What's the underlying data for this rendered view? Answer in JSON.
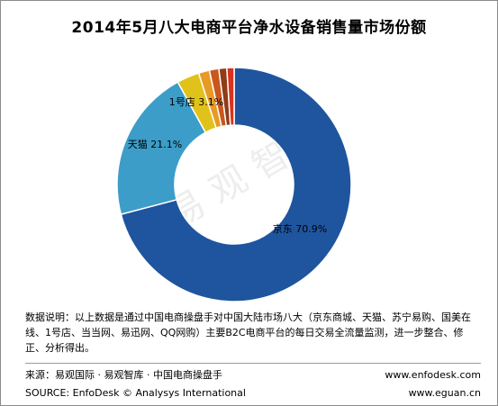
{
  "header": {
    "title": "2014年5月八大电商平台净水设备销售量市场份额"
  },
  "chart_data": {
    "type": "pie",
    "donut": true,
    "title": "2014年5月八大电商平台净水设备销售量市场份额",
    "slices": [
      {
        "label": "京东 70.9%",
        "value": 70.9,
        "color": "#1f559e"
      },
      {
        "label": "天猫 21.1%",
        "value": 21.1,
        "color": "#3c9dc8"
      },
      {
        "label": "1号店 3.1%",
        "value": 3.1,
        "color": "#e1c21a"
      },
      {
        "label": "",
        "value": 1.5,
        "color": "#e89a25"
      },
      {
        "label": "",
        "value": 1.3,
        "color": "#c9571d"
      },
      {
        "label": "",
        "value": 1.1,
        "color": "#8f3c18"
      },
      {
        "label": "",
        "value": 1.0,
        "color": "#d9321f"
      }
    ]
  },
  "watermark": {
    "text": "易观智库"
  },
  "notes": {
    "text": "数据说明：以上数据是通过中国电商操盘手对中国大陆市场八大（京东商城、天猫、苏宁易购、国美在线、1号店、当当网、易迅网、QQ网购）主要B2C电商平台的每日交易全流量监测，进一步整合、修正、分析得出。"
  },
  "footer": {
    "source_cn": "来源：易观国际 · 易观智库 · 中国电商操盘手",
    "site1": "www.enfodesk.com",
    "source_en": "SOURCE: EnfoDesk © Analysys International",
    "site2": "www.eguan.cn"
  }
}
